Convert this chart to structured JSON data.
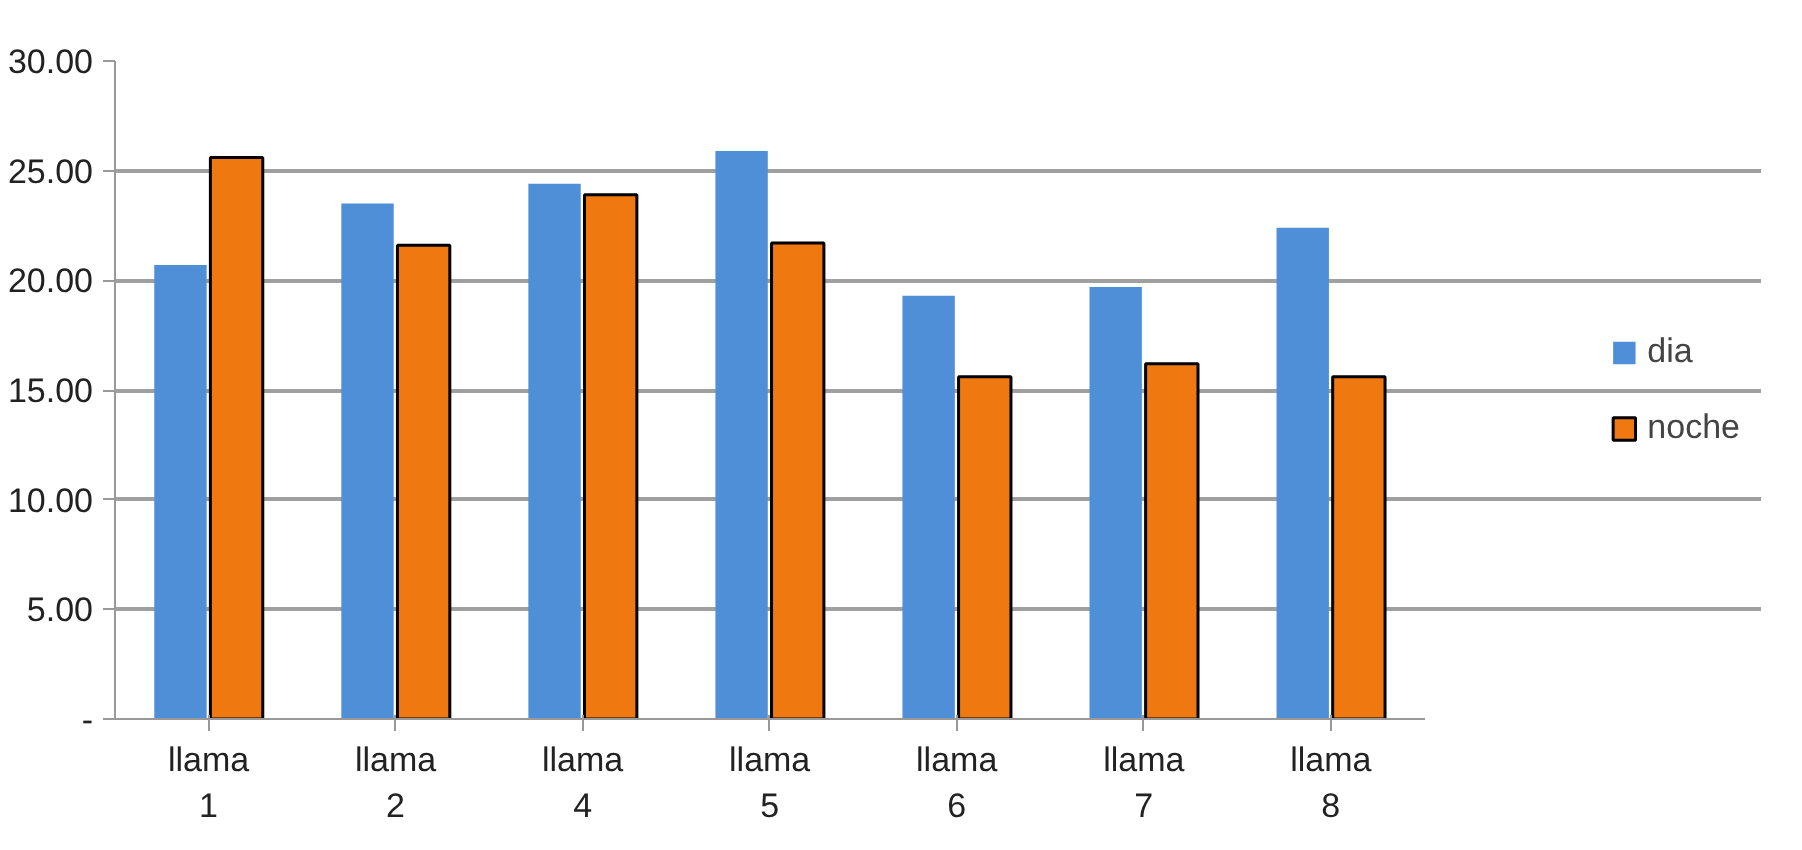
{
  "chart_data": {
    "type": "bar",
    "categories": [
      "llama 1",
      "llama 2",
      "llama 4",
      "llama 5",
      "llama 6",
      "llama 7",
      "llama 8"
    ],
    "series": [
      {
        "name": "dia",
        "color": "#4f8fd8",
        "values": [
          20.7,
          23.5,
          24.4,
          25.9,
          19.3,
          19.7,
          22.4
        ]
      },
      {
        "name": "noche",
        "color": "#f07810",
        "values": [
          25.6,
          21.6,
          23.9,
          21.7,
          15.6,
          16.2,
          15.6
        ]
      }
    ],
    "ylim": [
      0,
      30
    ],
    "yticks": [
      {
        "value": 0,
        "label": "-"
      },
      {
        "value": 5,
        "label": "5.00"
      },
      {
        "value": 10,
        "label": "10.00"
      },
      {
        "value": 15,
        "label": "15.00"
      },
      {
        "value": 20,
        "label": "20.00"
      },
      {
        "value": 25,
        "label": "25.00"
      },
      {
        "value": 30,
        "label": "30.00"
      }
    ],
    "grid": "y",
    "legend": "right"
  }
}
